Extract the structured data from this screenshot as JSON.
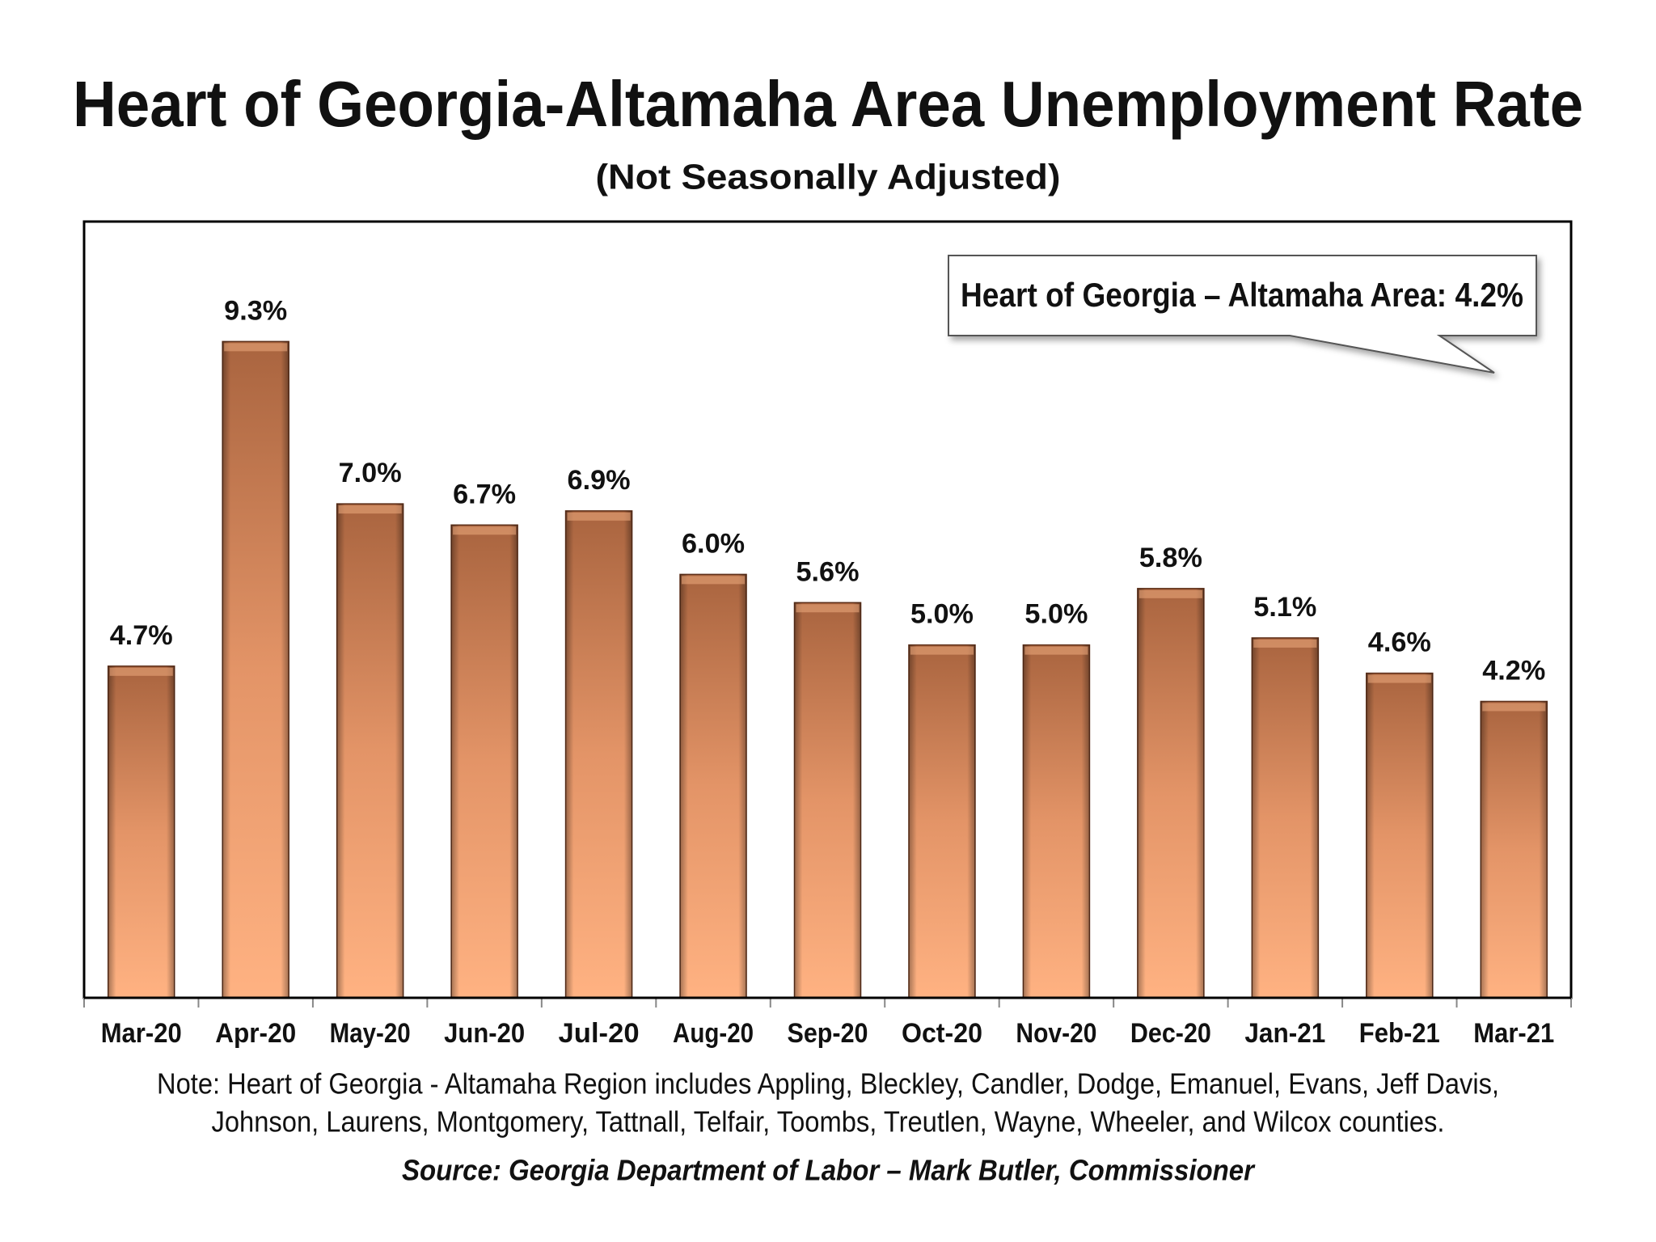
{
  "chart_data": {
    "type": "bar",
    "title": "Heart of Georgia-Altamaha Area Unemployment Rate",
    "subtitle": "(Not Seasonally Adjusted)",
    "annotation": "Heart of Georgia – Altamaha Area: 4.2%",
    "categories": [
      "Mar-20",
      "Apr-20",
      "May-20",
      "Jun-20",
      "Jul-20",
      "Aug-20",
      "Sep-20",
      "Oct-20",
      "Nov-20",
      "Dec-20",
      "Jan-21",
      "Feb-21",
      "Mar-21"
    ],
    "values": [
      4.7,
      9.3,
      7.0,
      6.7,
      6.9,
      6.0,
      5.6,
      5.0,
      5.0,
      5.8,
      5.1,
      4.6,
      4.2
    ],
    "value_labels": [
      "4.7%",
      "9.3%",
      "7.0%",
      "6.7%",
      "6.9%",
      "6.0%",
      "5.6%",
      "5.0%",
      "5.0%",
      "5.8%",
      "5.1%",
      "4.6%",
      "4.2%"
    ],
    "color": "#d98a5c",
    "ylim": [
      0,
      11
    ],
    "note": [
      "Note: Heart of Georgia - Altamaha Region includes Appling, Bleckley, Candler, Dodge, Emanuel, Evans, Jeff Davis,",
      "Johnson, Laurens, Montgomery, Tattnall, Telfair, Toombs, Treutlen, Wayne, Wheeler, and Wilcox counties."
    ],
    "source": "Source:  Georgia Department of Labor – Mark Butler, Commissioner"
  }
}
